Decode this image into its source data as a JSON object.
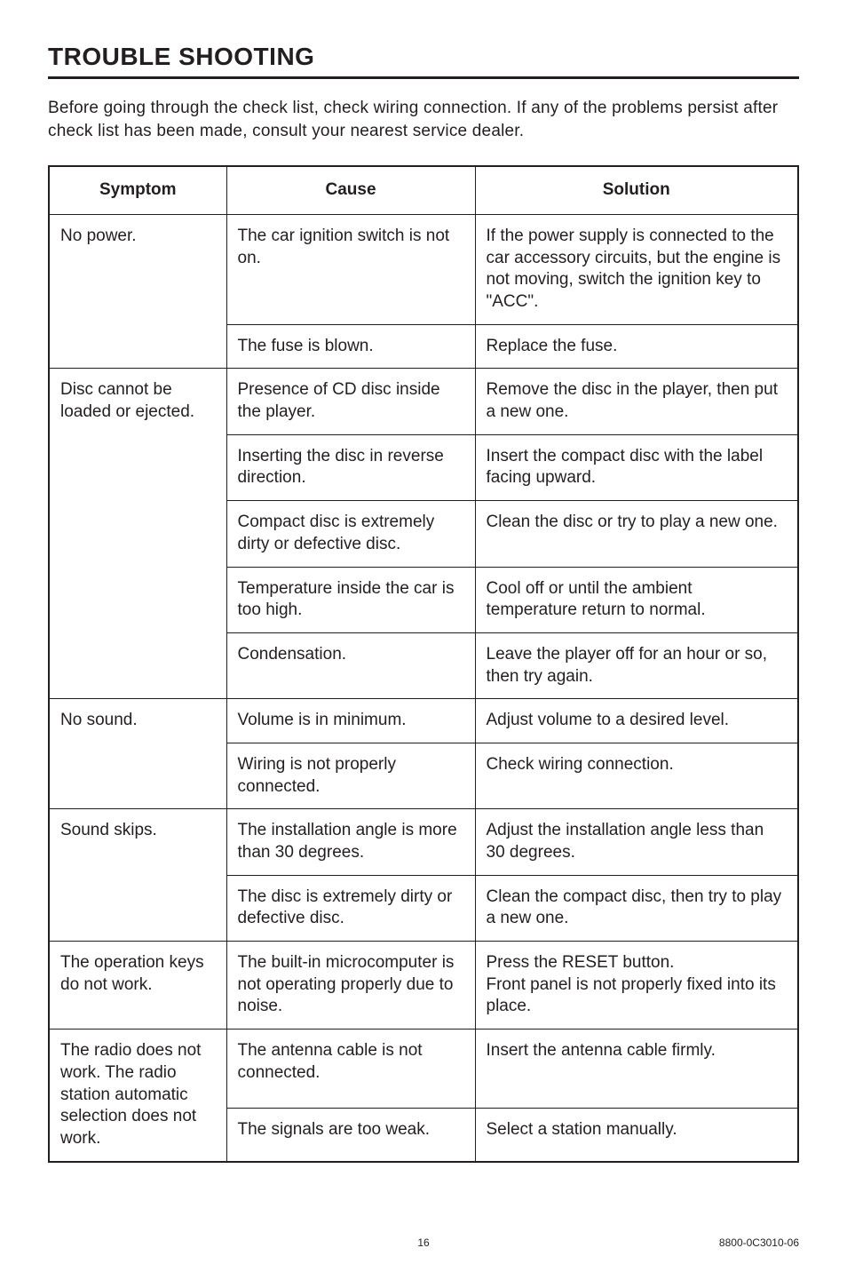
{
  "title": "TROUBLE SHOOTING",
  "intro": "Before going through the check list, check wiring connection.  If any of the problems persist after check list has been made, consult your nearest service dealer.",
  "headers": {
    "symptom": "Symptom",
    "cause": "Cause",
    "solution": "Solution"
  },
  "groups": [
    {
      "symptom": "No power.",
      "rows": [
        {
          "cause": "The car ignition switch is not on.",
          "solution": "If the power supply is connected to the car accessory circuits, but the engine is not moving, switch the ignition key to \"ACC\"."
        },
        {
          "cause": "The fuse is blown.",
          "solution": "Replace the fuse."
        }
      ]
    },
    {
      "symptom": "Disc cannot be loaded or ejected.",
      "rows": [
        {
          "cause": "Presence of CD disc inside the player.",
          "solution": "Remove the disc in the player, then put a new one."
        },
        {
          "cause": "Inserting the disc in reverse direction.",
          "solution": "Insert the compact disc with the label facing upward."
        },
        {
          "cause": "Compact disc is extremely dirty or defective disc.",
          "solution": "Clean the disc or try to play a new one."
        },
        {
          "cause": "Temperature inside the car is too high.",
          "solution": "Cool off or until the ambient temperature return to normal."
        },
        {
          "cause": "Condensation.",
          "solution": "Leave the player off for an hour or so, then try again."
        }
      ]
    },
    {
      "symptom": "No sound.",
      "rows": [
        {
          "cause": "Volume is in minimum.",
          "solution": "Adjust volume to a desired level."
        },
        {
          "cause": "Wiring is not properly connected.",
          "solution": "Check wiring connection."
        }
      ]
    },
    {
      "symptom": "Sound skips.",
      "rows": [
        {
          "cause": "The installation angle is more than 30 degrees.",
          "solution": "Adjust the installation angle less than 30 degrees."
        },
        {
          "cause": "The disc is extremely dirty or defective disc.",
          "solution": "Clean the compact disc, then try to play a new one."
        }
      ]
    },
    {
      "symptom": "The operation keys do not work.",
      "rows": [
        {
          "cause": "The built-in microcomputer is not operating properly due to noise.",
          "solution": "Press the RESET button.\nFront panel is not properly fixed into its place."
        }
      ]
    },
    {
      "symptom": "The radio does not work.  The radio station automatic selection does not work.",
      "rows": [
        {
          "cause": "The antenna cable is not connected.",
          "solution": "Insert the antenna cable firmly."
        },
        {
          "cause": "The signals are too weak.",
          "solution": "Select a station manually."
        }
      ]
    }
  ],
  "footer": {
    "page": "16",
    "doc": "8800-0C3010-06"
  },
  "colors": {
    "text": "#231f20",
    "bg": "#ffffff"
  }
}
